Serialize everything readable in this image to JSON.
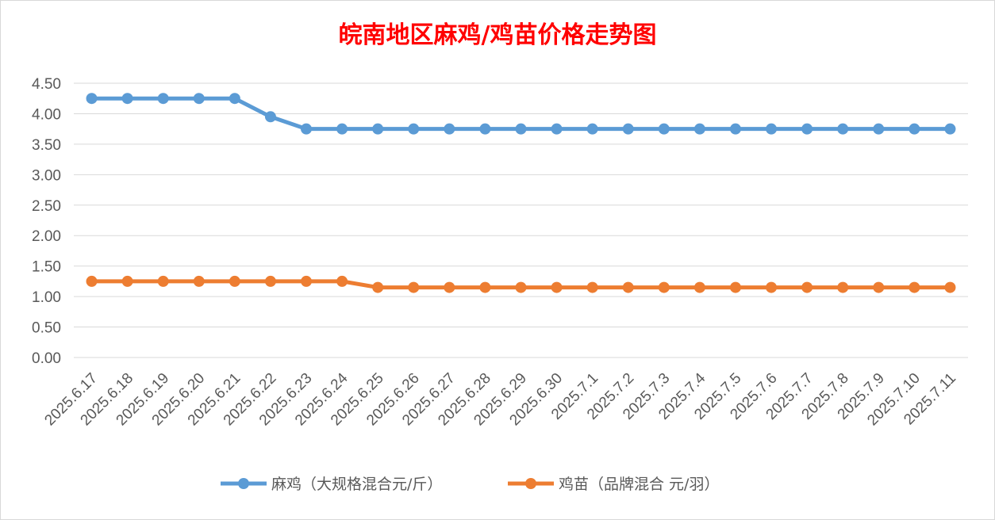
{
  "chart_data": {
    "type": "line",
    "title": "皖南地区麻鸡/鸡苗价格走势图",
    "categories": [
      "2025.6.17",
      "2025.6.18",
      "2025.6.19",
      "2025.6.20",
      "2025.6.21",
      "2025.6.22",
      "2025.6.23",
      "2025.6.24",
      "2025.6.25",
      "2025.6.26",
      "2025.6.27",
      "2025.6.28",
      "2025.6.29",
      "2025.6.30",
      "2025.7.1",
      "2025.7.2",
      "2025.7.3",
      "2025.7.4",
      "2025.7.5",
      "2025.7.6",
      "2025.7.7",
      "2025.7.8",
      "2025.7.9",
      "2025.7.10",
      "2025.7.11"
    ],
    "series": [
      {
        "name": "麻鸡（大规格混合元/斤）",
        "color": "#5b9bd5",
        "values": [
          4.25,
          4.25,
          4.25,
          4.25,
          4.25,
          3.95,
          3.75,
          3.75,
          3.75,
          3.75,
          3.75,
          3.75,
          3.75,
          3.75,
          3.75,
          3.75,
          3.75,
          3.75,
          3.75,
          3.75,
          3.75,
          3.75,
          3.75,
          3.75,
          3.75
        ]
      },
      {
        "name": "鸡苗（品牌混合 元/羽）",
        "color": "#ed7d31",
        "values": [
          1.25,
          1.25,
          1.25,
          1.25,
          1.25,
          1.25,
          1.25,
          1.25,
          1.15,
          1.15,
          1.15,
          1.15,
          1.15,
          1.15,
          1.15,
          1.15,
          1.15,
          1.15,
          1.15,
          1.15,
          1.15,
          1.15,
          1.15,
          1.15,
          1.15
        ]
      }
    ],
    "ylim": [
      0,
      4.5
    ],
    "yticks": [
      "0.00",
      "0.50",
      "1.00",
      "1.50",
      "2.00",
      "2.50",
      "3.00",
      "3.50",
      "4.00",
      "4.50"
    ],
    "grid": true,
    "legend_position": "bottom"
  }
}
